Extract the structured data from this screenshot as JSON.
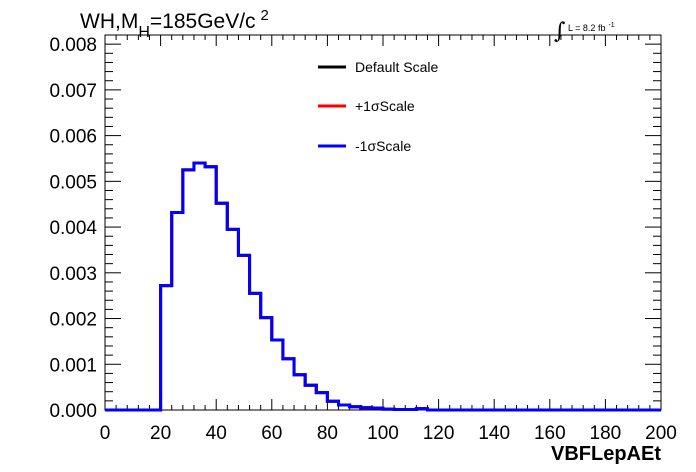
{
  "chart_data": {
    "type": "line",
    "title": {
      "pre": "WH,M",
      "sub": "H",
      "post": "=185GeV/c",
      "sup": "2"
    },
    "luminosity": {
      "integral": "∫",
      "text": "L = 8.2 fb",
      "sup": "-1"
    },
    "xlabel": "VBFLepAEt",
    "ylabel": "",
    "xlim": [
      0,
      200
    ],
    "ylim": [
      0,
      0.0082
    ],
    "x_ticks": [
      0,
      20,
      40,
      60,
      80,
      100,
      120,
      140,
      160,
      180,
      200
    ],
    "x_tick_labels": [
      "0",
      "20",
      "40",
      "60",
      "80",
      "100",
      "120",
      "140",
      "160",
      "180",
      "200"
    ],
    "y_ticks": [
      0,
      0.001,
      0.002,
      0.003,
      0.004,
      0.005,
      0.006,
      0.007,
      0.008
    ],
    "y_tick_labels": [
      "0.000",
      "0.001",
      "0.002",
      "0.003",
      "0.004",
      "0.005",
      "0.006",
      "0.007",
      "0.008"
    ],
    "bin_edges": [
      0,
      4,
      8,
      12,
      16,
      20,
      24,
      28,
      32,
      36,
      40,
      44,
      48,
      52,
      56,
      60,
      64,
      68,
      72,
      76,
      80,
      84,
      88,
      92,
      96,
      100,
      104,
      108,
      112,
      116,
      120,
      124,
      128,
      132,
      136,
      140,
      144,
      148,
      152,
      156,
      160,
      164,
      168,
      172,
      176,
      180,
      184,
      188,
      192,
      196,
      200
    ],
    "series": [
      {
        "name": "Default Scale",
        "color": "#000000",
        "values": [
          0,
          0,
          0,
          0,
          0,
          0.00272,
          0.00432,
          0.00525,
          0.0054,
          0.00532,
          0.00452,
          0.00395,
          0.00338,
          0.00255,
          0.00202,
          0.00153,
          0.00112,
          0.00077,
          0.00054,
          0.00038,
          0.00019,
          0.00011,
          7e-05,
          5e-05,
          4e-05,
          2e-05,
          1e-05,
          1e-05,
          3e-05,
          0,
          0,
          0,
          0,
          0,
          0,
          0,
          0,
          0,
          0,
          0,
          0,
          0,
          0,
          0,
          0,
          0,
          0,
          0,
          0,
          0
        ]
      },
      {
        "name": "+1σScale",
        "color": "#ff0000",
        "values": [
          0,
          0,
          0,
          0,
          0,
          0.00272,
          0.00432,
          0.00525,
          0.0054,
          0.00532,
          0.00452,
          0.00395,
          0.00338,
          0.00255,
          0.00202,
          0.00153,
          0.00112,
          0.00077,
          0.00054,
          0.00038,
          0.00019,
          0.00011,
          7e-05,
          5e-05,
          4e-05,
          2e-05,
          1e-05,
          1e-05,
          3e-05,
          0,
          0,
          0,
          0,
          0,
          0,
          0,
          0,
          0,
          0,
          0,
          0,
          0,
          0,
          0,
          0,
          0,
          0,
          0,
          0,
          0
        ]
      },
      {
        "name": "-1σScale",
        "color": "#0000ff",
        "values": [
          0,
          0,
          0,
          0,
          0,
          0.00272,
          0.00432,
          0.00525,
          0.0054,
          0.00532,
          0.00452,
          0.00395,
          0.00338,
          0.00255,
          0.00202,
          0.00153,
          0.00112,
          0.00077,
          0.00054,
          0.00038,
          0.00019,
          0.00011,
          7e-05,
          5e-05,
          4e-05,
          2e-05,
          1e-05,
          1e-05,
          3e-05,
          0,
          0,
          0,
          0,
          0,
          0,
          0,
          0,
          0,
          0,
          0,
          0,
          0,
          0,
          0,
          0,
          0,
          0,
          0,
          0,
          0
        ]
      }
    ],
    "legend_placement": "top-center",
    "grid": false
  }
}
